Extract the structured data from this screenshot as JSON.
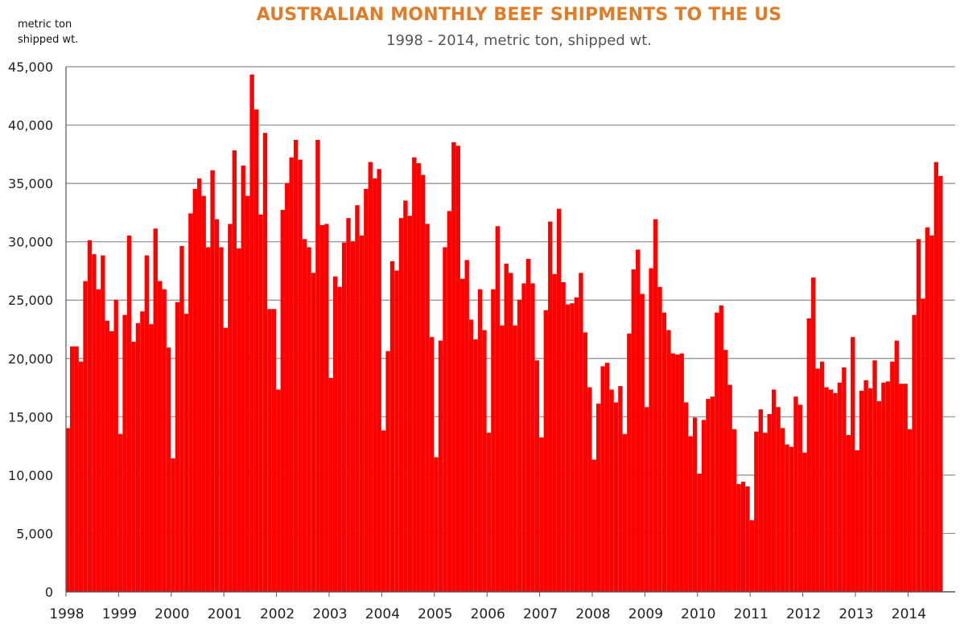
{
  "chart_data": {
    "type": "bar",
    "title": "AUSTRALIAN MONTHLY BEEF SHIPMENTS TO THE US",
    "subtitle": "1998 - 2014, metric ton, shipped wt.",
    "ylabel_lines": [
      "metric ton",
      "shipped wt."
    ],
    "xlabel": "",
    "ylim": [
      0,
      45000
    ],
    "yticks": [
      0,
      5000,
      10000,
      15000,
      20000,
      25000,
      30000,
      35000,
      40000,
      45000
    ],
    "ytick_labels": [
      "0",
      "5,000",
      "10,000",
      "15,000",
      "20,000",
      "25,000",
      "30,000",
      "35,000",
      "40,000",
      "45,000"
    ],
    "xtick_labels": [
      "1998",
      "1999",
      "2000",
      "2001",
      "2002",
      "2003",
      "2004",
      "2005",
      "2006",
      "2007",
      "2008",
      "2009",
      "2010",
      "2011",
      "2012",
      "2013",
      "2014"
    ],
    "start": "1998-01",
    "grid": true,
    "legend": "none",
    "bar_color": "#FF0000",
    "values": [
      14000,
      21000,
      21000,
      19700,
      26600,
      30100,
      28900,
      25900,
      28800,
      23200,
      22300,
      25000,
      13500,
      23700,
      30500,
      21400,
      23000,
      24000,
      28800,
      22900,
      31100,
      26600,
      25900,
      20900,
      11400,
      24800,
      29600,
      23800,
      32400,
      34500,
      35400,
      33900,
      29500,
      36100,
      31900,
      29500,
      22600,
      31500,
      37800,
      29400,
      36500,
      33900,
      44300,
      41300,
      32300,
      39300,
      24200,
      24200,
      17300,
      32700,
      35000,
      37200,
      38700,
      37000,
      30200,
      29500,
      27300,
      38700,
      31400,
      31500,
      18300,
      27000,
      26100,
      29900,
      32000,
      30000,
      33100,
      30500,
      34500,
      36800,
      35400,
      36200,
      13800,
      20600,
      28300,
      27500,
      32000,
      33500,
      32200,
      37200,
      36700,
      35700,
      31500,
      21800,
      11500,
      21500,
      29500,
      32600,
      38500,
      38200,
      26800,
      28400,
      23300,
      21600,
      25900,
      22400,
      13600,
      25900,
      31300,
      22800,
      28100,
      27300,
      22800,
      25000,
      26400,
      28500,
      26400,
      19800,
      13200,
      24100,
      31700,
      27200,
      32800,
      26500,
      24600,
      24700,
      25200,
      27300,
      22200,
      17500,
      11300,
      16100,
      19300,
      19600,
      17300,
      16200,
      17600,
      13500,
      22100,
      27600,
      29300,
      25500,
      15800,
      27700,
      31900,
      26100,
      23900,
      22400,
      20400,
      20300,
      20400,
      16200,
      13300,
      14900,
      10100,
      14700,
      16500,
      16700,
      23900,
      24500,
      20700,
      17700,
      13900,
      9200,
      9400,
      9000,
      6100,
      13700,
      15600,
      13600,
      15200,
      17300,
      15800,
      14000,
      12600,
      12400,
      16700,
      16000,
      11900,
      23400,
      26900,
      19100,
      19700,
      17500,
      17300,
      17000,
      17900,
      19200,
      13400,
      21800,
      12100,
      17200,
      18100,
      17400,
      19800,
      16300,
      17900,
      18000,
      19700,
      21500,
      17800,
      17800,
      13900,
      23700,
      30200,
      25100,
      31200,
      30500,
      36800,
      35600
    ]
  }
}
